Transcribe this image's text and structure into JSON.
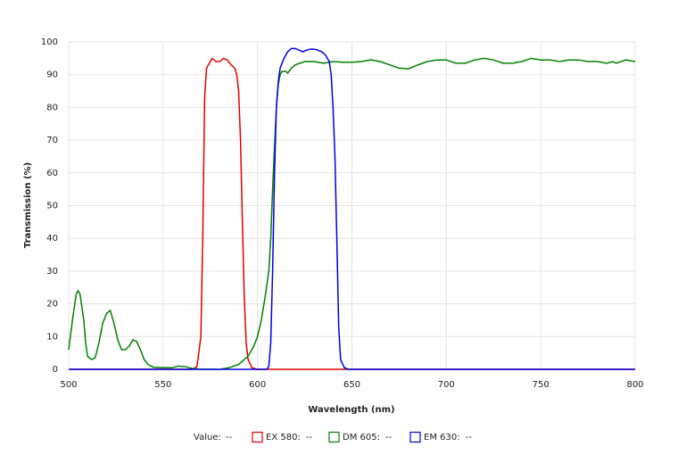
{
  "chart_data": {
    "type": "line",
    "x_label": "Wavelength (nm)",
    "y_label": "Transmission (%)",
    "xlim": [
      500,
      800
    ],
    "xticks": [
      500,
      550,
      600,
      650,
      700,
      750,
      800
    ],
    "ylim": [
      0,
      100
    ],
    "yticks": [
      0,
      10,
      20,
      30,
      40,
      50,
      60,
      70,
      80,
      90,
      100
    ],
    "grid": true,
    "readout": {
      "label": "Value:",
      "value": "--"
    },
    "series": [
      {
        "name": "EX 580:",
        "color": "#e00000",
        "readout": "--",
        "x": [
          500,
          560,
          566,
          568,
          570,
          571,
          572,
          573,
          575,
          576,
          578,
          580,
          582,
          584,
          586,
          588,
          589,
          590,
          591,
          592,
          593,
          594,
          595,
          597,
          600,
          800
        ],
        "values": [
          0,
          0,
          0,
          1,
          10,
          40,
          83,
          92,
          94,
          95,
          94,
          94,
          95,
          94.5,
          93,
          92,
          90,
          85,
          70,
          45,
          22,
          8,
          3,
          0.5,
          0,
          0
        ]
      },
      {
        "name": "DM 605:",
        "color": "#008000",
        "readout": "--",
        "x": [
          500,
          502,
          504,
          505,
          506,
          508,
          509,
          510,
          512,
          514,
          516,
          518,
          520,
          522,
          524,
          526,
          528,
          530,
          532,
          534,
          536,
          538,
          540,
          542,
          545,
          550,
          555,
          558,
          562,
          565,
          570,
          575,
          580,
          585,
          590,
          595,
          598,
          600,
          602,
          604,
          606,
          607,
          608,
          609,
          610,
          611,
          612,
          613,
          615,
          616,
          618,
          620,
          625,
          630,
          635,
          640,
          645,
          650,
          655,
          660,
          665,
          670,
          675,
          680,
          685,
          690,
          695,
          700,
          705,
          710,
          715,
          720,
          725,
          730,
          735,
          740,
          745,
          750,
          755,
          760,
          765,
          770,
          775,
          780,
          785,
          788,
          790,
          795,
          800
        ],
        "values": [
          6,
          15,
          23,
          24,
          23,
          15,
          8,
          4,
          3,
          3.5,
          8,
          14,
          17,
          18,
          14,
          9,
          6,
          6,
          7,
          9,
          8.5,
          6,
          3,
          1.5,
          0.6,
          0.5,
          0.5,
          1,
          0.8,
          0.3,
          0,
          0,
          0,
          0.5,
          1.5,
          4,
          7,
          10,
          15,
          22,
          30,
          40,
          55,
          68,
          80,
          87,
          90,
          91,
          91,
          90.5,
          92,
          93,
          94,
          94,
          93.5,
          94,
          93.8,
          93.8,
          94,
          94.5,
          94,
          93,
          92,
          91.8,
          93,
          94,
          94.5,
          94.5,
          93.5,
          93.5,
          94.5,
          95,
          94.5,
          93.5,
          93.5,
          94,
          95,
          94.5,
          94.5,
          94,
          94.5,
          94.5,
          94,
          94,
          93.5,
          94,
          93.5,
          94.5,
          94
        ]
      },
      {
        "name": "EM 630:",
        "color": "#0000e0",
        "readout": "--",
        "x": [
          500,
          605,
          606,
          607,
          608,
          609,
          610,
          611,
          612,
          614,
          616,
          618,
          620,
          622,
          624,
          626,
          628,
          630,
          632,
          634,
          636,
          638,
          639,
          640,
          641,
          642,
          643,
          644,
          646,
          648,
          800
        ],
        "values": [
          0,
          0,
          1,
          8,
          30,
          60,
          80,
          88,
          92,
          95,
          97,
          98,
          98,
          97.5,
          97,
          97.5,
          97.8,
          97.8,
          97.5,
          97,
          96,
          94,
          90,
          80,
          65,
          40,
          13,
          3,
          0.5,
          0,
          0
        ]
      }
    ]
  }
}
